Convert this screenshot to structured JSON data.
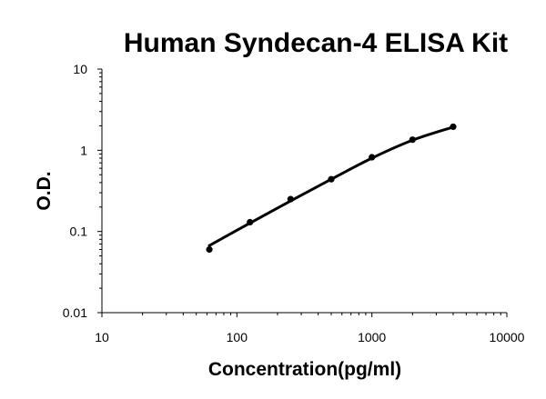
{
  "chart_data": {
    "type": "scatter",
    "title": "Human Syndecan-4 ELISA Kit",
    "xlabel": "Concentration(pg/ml)",
    "ylabel": "O.D.",
    "x_scale": "log",
    "y_scale": "log",
    "xlim": [
      10,
      10000
    ],
    "ylim": [
      0.01,
      10
    ],
    "x_ticks": [
      "10",
      "100",
      "1000",
      "10000"
    ],
    "y_ticks": [
      "0.01",
      "0.1",
      "1",
      "10"
    ],
    "grid": false,
    "legend": "none",
    "series": [
      {
        "x": [
          62.5,
          125,
          250,
          500,
          1000,
          2000,
          4000
        ],
        "y": [
          0.06,
          0.13,
          0.25,
          0.44,
          0.82,
          1.35,
          1.95
        ]
      }
    ],
    "fit_curve": {
      "x": [
        62.5,
        125,
        250,
        500,
        1000,
        2000,
        4000
      ],
      "y": [
        0.067,
        0.127,
        0.238,
        0.44,
        0.8,
        1.33,
        1.93
      ]
    }
  }
}
